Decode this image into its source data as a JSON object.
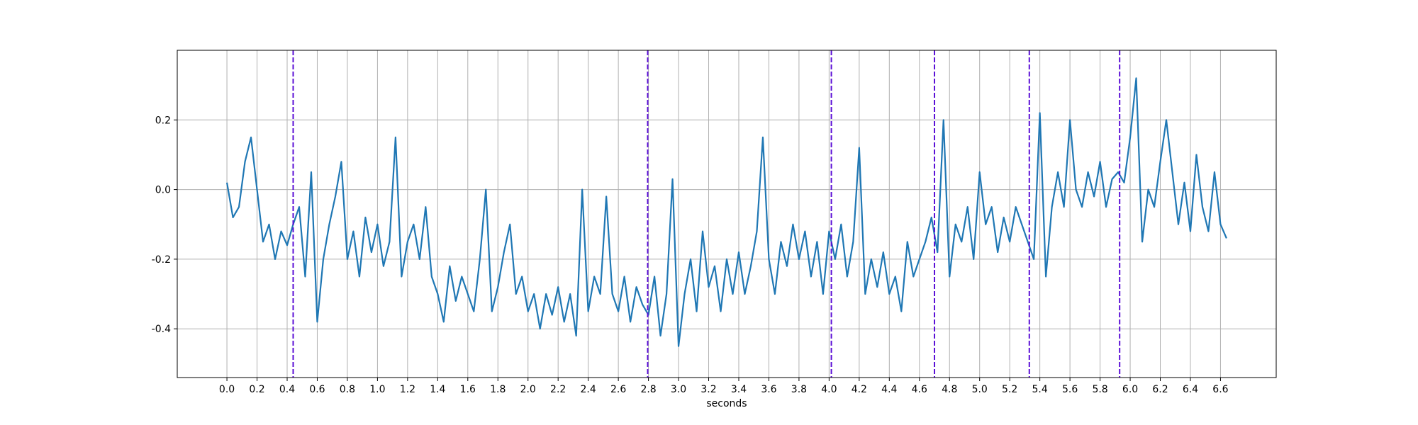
{
  "chart_data": {
    "type": "line",
    "xlabel": "seconds",
    "x": [
      0,
      0.04,
      0.08,
      0.12,
      0.16,
      0.2,
      0.24,
      0.28,
      0.32,
      0.36,
      0.4,
      0.44,
      0.48,
      0.52,
      0.56,
      0.6,
      0.64,
      0.68,
      0.72,
      0.76,
      0.8,
      0.84,
      0.88,
      0.92,
      0.96,
      1,
      1.04,
      1.08,
      1.12,
      1.16,
      1.2,
      1.24,
      1.28,
      1.32,
      1.36,
      1.4,
      1.44,
      1.48,
      1.52,
      1.56,
      1.6,
      1.64,
      1.68,
      1.72,
      1.76,
      1.8,
      1.84,
      1.88,
      1.92,
      1.96,
      2,
      2.04,
      2.08,
      2.12,
      2.16,
      2.2,
      2.24,
      2.28,
      2.32,
      2.36,
      2.4,
      2.44,
      2.48,
      2.52,
      2.56,
      2.6,
      2.64,
      2.68,
      2.72,
      2.76,
      2.8,
      2.84,
      2.88,
      2.92,
      2.96,
      3,
      3.04,
      3.08,
      3.12,
      3.16,
      3.2,
      3.24,
      3.28,
      3.32,
      3.36,
      3.4,
      3.44,
      3.48,
      3.52,
      3.56,
      3.6,
      3.64,
      3.68,
      3.72,
      3.76,
      3.8,
      3.84,
      3.88,
      3.92,
      3.96,
      4,
      4.04,
      4.08,
      4.12,
      4.16,
      4.2,
      4.24,
      4.28,
      4.32,
      4.36,
      4.4,
      4.44,
      4.48,
      4.52,
      4.56,
      4.6,
      4.64,
      4.68,
      4.72,
      4.76,
      4.8,
      4.84,
      4.88,
      4.92,
      4.96,
      5,
      5.04,
      5.08,
      5.12,
      5.16,
      5.2,
      5.24,
      5.28,
      5.32,
      5.36,
      5.4,
      5.44,
      5.48,
      5.52,
      5.56,
      5.6,
      5.64,
      5.68,
      5.72,
      5.76,
      5.8,
      5.84,
      5.88,
      5.92,
      5.96,
      6,
      6.04,
      6.08,
      6.12,
      6.16,
      6.2,
      6.24,
      6.28,
      6.32,
      6.36,
      6.4,
      6.44,
      6.48,
      6.52,
      6.56,
      6.6,
      6.64
    ],
    "values": [
      0.02,
      -0.08,
      -0.05,
      0.08,
      0.15,
      0.0,
      -0.15,
      -0.1,
      -0.2,
      -0.12,
      -0.16,
      -0.1,
      -0.05,
      -0.25,
      0.05,
      -0.38,
      -0.2,
      -0.1,
      -0.02,
      0.08,
      -0.2,
      -0.12,
      -0.25,
      -0.08,
      -0.18,
      -0.1,
      -0.22,
      -0.15,
      0.15,
      -0.25,
      -0.15,
      -0.1,
      -0.2,
      -0.05,
      -0.25,
      -0.3,
      -0.38,
      -0.22,
      -0.32,
      -0.25,
      -0.3,
      -0.35,
      -0.2,
      0.0,
      -0.35,
      -0.28,
      -0.18,
      -0.1,
      -0.3,
      -0.25,
      -0.35,
      -0.3,
      -0.4,
      -0.3,
      -0.36,
      -0.28,
      -0.38,
      -0.3,
      -0.42,
      0.0,
      -0.35,
      -0.25,
      -0.3,
      -0.02,
      -0.3,
      -0.35,
      -0.25,
      -0.38,
      -0.28,
      -0.33,
      -0.36,
      -0.25,
      -0.42,
      -0.3,
      0.03,
      -0.45,
      -0.3,
      -0.2,
      -0.35,
      -0.12,
      -0.28,
      -0.22,
      -0.35,
      -0.2,
      -0.3,
      -0.18,
      -0.3,
      -0.22,
      -0.12,
      0.15,
      -0.2,
      -0.3,
      -0.15,
      -0.22,
      -0.1,
      -0.2,
      -0.12,
      -0.25,
      -0.15,
      -0.3,
      -0.12,
      -0.2,
      -0.1,
      -0.25,
      -0.15,
      0.12,
      -0.3,
      -0.2,
      -0.28,
      -0.18,
      -0.3,
      -0.25,
      -0.35,
      -0.15,
      -0.25,
      -0.2,
      -0.15,
      -0.08,
      -0.18,
      0.2,
      -0.25,
      -0.1,
      -0.15,
      -0.05,
      -0.2,
      0.05,
      -0.1,
      -0.05,
      -0.18,
      -0.08,
      -0.15,
      -0.05,
      -0.1,
      -0.15,
      -0.2,
      0.22,
      -0.25,
      -0.05,
      0.05,
      -0.05,
      0.2,
      0.0,
      -0.05,
      0.05,
      -0.02,
      0.08,
      -0.05,
      0.03,
      0.05,
      0.02,
      0.15,
      0.32,
      -0.15,
      0.0,
      -0.05,
      0.08,
      0.2,
      0.05,
      -0.1,
      0.02,
      -0.12,
      0.1,
      -0.05,
      -0.12,
      0.05,
      -0.1,
      -0.14
    ],
    "color": "#1f77b4",
    "vlines": [
      0.44,
      2.795,
      4.015,
      4.7,
      5.33,
      5.93
    ],
    "vline_color": "#5b0fd6",
    "xlim": [
      -0.33,
      6.97
    ],
    "ylim": [
      -0.54,
      0.4
    ],
    "xticks": [
      {
        "value": 0,
        "label": "0.0"
      },
      0.2,
      0.4,
      0.6,
      0.8,
      {
        "value": 1,
        "label": "1.0"
      },
      1.2,
      1.4,
      1.6,
      1.8,
      {
        "value": 2,
        "label": "2.0"
      },
      2.2,
      2.4,
      2.6,
      2.8,
      {
        "value": 3,
        "label": "3.0"
      },
      3.2,
      3.4,
      3.6,
      3.8,
      {
        "value": 4,
        "label": "4.0"
      },
      4.2,
      4.4,
      4.6,
      4.8,
      {
        "value": 5,
        "label": "5.0"
      },
      5.2,
      5.4,
      5.6,
      5.8,
      {
        "value": 6,
        "label": "6.0"
      },
      6.2,
      6.4,
      6.6
    ],
    "yticks": [
      -0.4,
      -0.2,
      {
        "value": 0,
        "label": "0.0"
      },
      0.2
    ],
    "grid": true
  }
}
